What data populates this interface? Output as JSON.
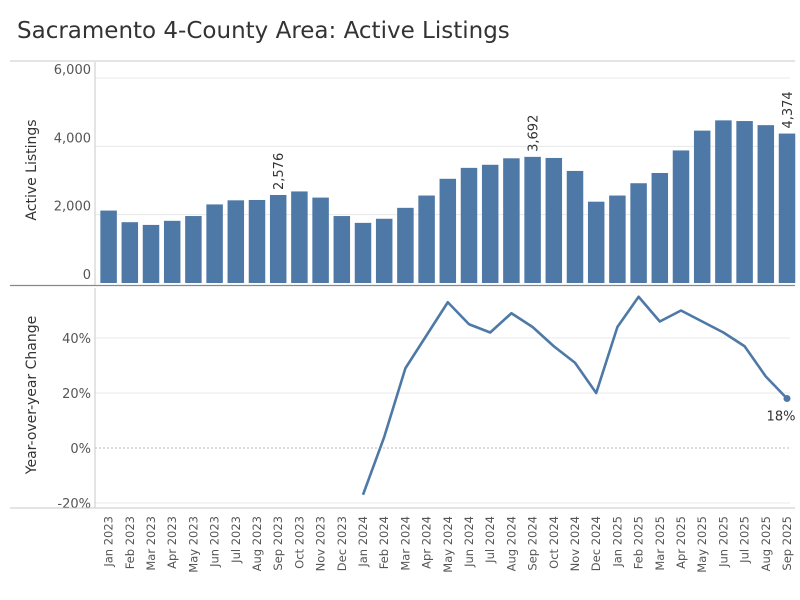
{
  "title": "Sacramento 4-County Area: Active Listings",
  "colors": {
    "bar": "#4e79a7",
    "line": "#4e79a7",
    "grid": "#e8e8e8",
    "axis": "#c8c8c8"
  },
  "chart_data": [
    {
      "type": "bar",
      "ylabel": "Active Listings",
      "ylim": [
        0,
        6200
      ],
      "yticks": [
        0,
        2000,
        4000,
        6000
      ],
      "ytick_labels": [
        "0",
        "2,000",
        "4,000",
        "6,000"
      ],
      "grid": true,
      "categories": [
        "Jan 2023",
        "Feb 2023",
        "Mar 2023",
        "Apr 2023",
        "May 2023",
        "Jun 2023",
        "Jul 2023",
        "Aug 2023",
        "Sep 2023",
        "Oct 2023",
        "Nov 2023",
        "Dec 2023",
        "Jan 2024",
        "Feb 2024",
        "Mar 2024",
        "Apr 2024",
        "May 2024",
        "Jun 2024",
        "Jul 2024",
        "Aug 2024",
        "Sep 2024",
        "Oct 2024",
        "Nov 2024",
        "Dec 2024",
        "Jan 2025",
        "Feb 2025",
        "Mar 2025",
        "Apr 2025",
        "May 2025",
        "Jun 2025",
        "Jul 2025",
        "Aug 2025",
        "Sep 2025"
      ],
      "values": [
        2120,
        1780,
        1700,
        1820,
        1960,
        2300,
        2420,
        2430,
        2576,
        2680,
        2500,
        1960,
        1760,
        1880,
        2200,
        2560,
        3050,
        3370,
        3460,
        3650,
        3692,
        3660,
        3280,
        2380,
        2560,
        2920,
        3220,
        3880,
        4460,
        4760,
        4740,
        4620,
        4374
      ],
      "data_labels": [
        {
          "index": 8,
          "text": "2,576"
        },
        {
          "index": 20,
          "text": "3,692"
        },
        {
          "index": 32,
          "text": "4,374"
        }
      ]
    },
    {
      "type": "line",
      "ylabel": "Year-over-year Change",
      "ylim": [
        -0.22,
        0.58
      ],
      "yticks": [
        -0.2,
        0,
        0.2,
        0.4
      ],
      "ytick_labels": [
        "-20%",
        "0%",
        "20%",
        "40%"
      ],
      "grid": true,
      "x_start_index": 12,
      "values": [
        -0.17,
        0.04,
        0.29,
        0.41,
        0.53,
        0.45,
        0.42,
        0.49,
        0.44,
        0.37,
        0.31,
        0.2,
        0.44,
        0.55,
        0.46,
        0.5,
        0.46,
        0.42,
        0.37,
        0.26,
        0.18
      ],
      "end_label": "18%"
    }
  ]
}
